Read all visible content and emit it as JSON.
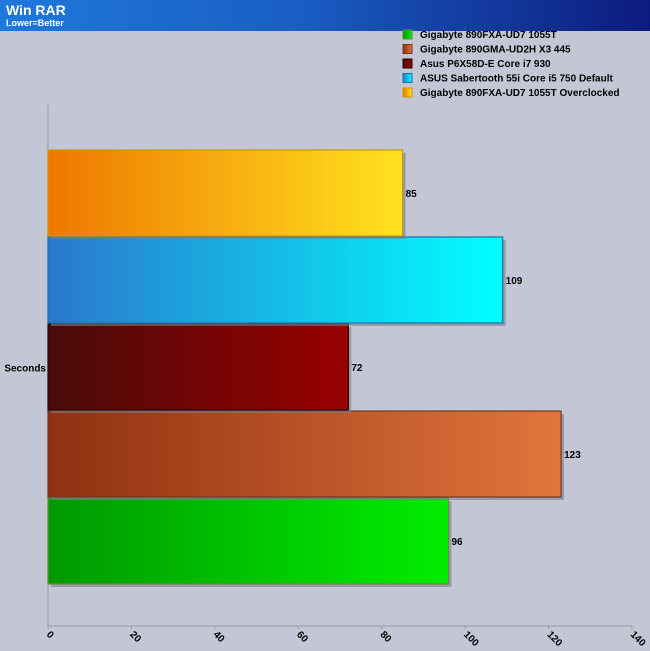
{
  "header": {
    "title": "Win RAR",
    "subtitle": "Lower=Better"
  },
  "chart_data": {
    "type": "bar",
    "orientation": "horizontal",
    "title": "Win RAR",
    "subtitle": "Lower=Better",
    "categories": [
      "Seconds"
    ],
    "xlabel": "",
    "ylabel": "",
    "xlim": [
      0,
      140
    ],
    "xticks": [
      0,
      20,
      40,
      60,
      80,
      100,
      120,
      140
    ],
    "grid": false,
    "legend_position": "top-right",
    "series": [
      {
        "name": "Gigabyte 890FXA-UD7 1055T",
        "values": [
          96
        ],
        "color_dark": "#009900",
        "color_light": "#00ee00",
        "edge": "#6a8a40"
      },
      {
        "name": "Gigabyte 890GMA-UD2H X3 445",
        "values": [
          123
        ],
        "color_dark": "#8f3010",
        "color_light": "#e2753d",
        "edge": "#6e3a1e"
      },
      {
        "name": "Asus P6X58D-E Core i7 930",
        "values": [
          72
        ],
        "color_dark": "#4a0a0a",
        "color_light": "#990000",
        "edge": "#2a0505"
      },
      {
        "name": "ASUS Sabertooth 55i Core i5 750 Default",
        "values": [
          109
        ],
        "color_dark": "#2a78cc",
        "color_light": "#00ffff",
        "edge": "#1c6fa8"
      },
      {
        "name": "Gigabyte 890FXA-UD7 1055T Overclocked",
        "values": [
          85
        ],
        "color_dark": "#ee7700",
        "color_light": "#ffe31f",
        "edge": "#c89a00"
      }
    ]
  }
}
